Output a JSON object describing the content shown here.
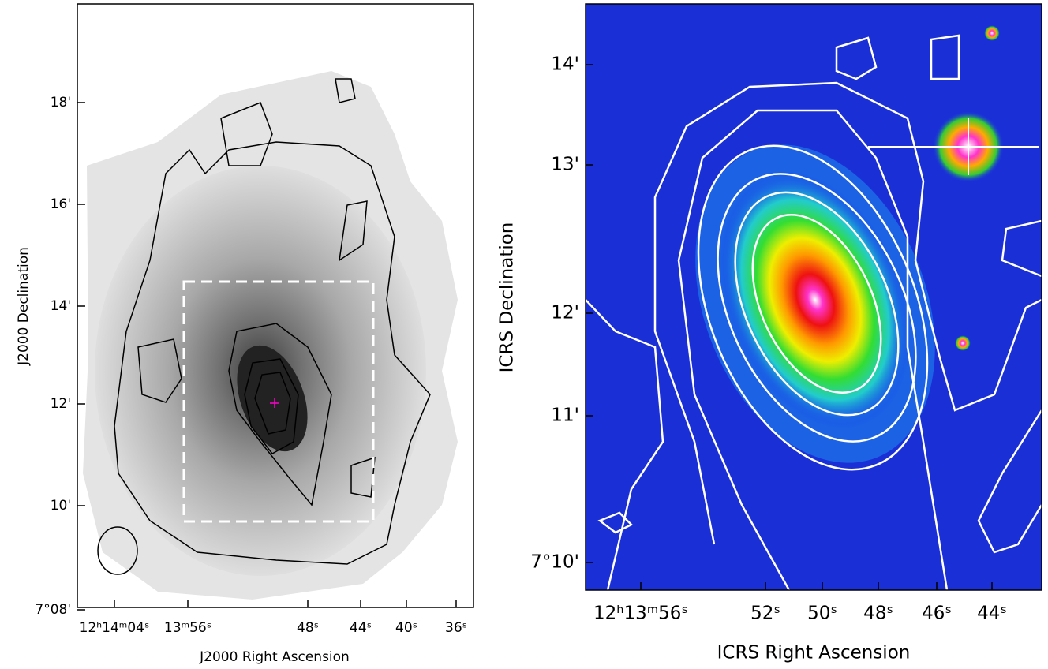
{
  "panels": [
    {
      "x_axis_label": "J2000 Right Ascension",
      "y_axis_label": "J2000 Declination",
      "x_tick_labels": [
        "12ʰ14ᵐ04ˢ",
        "13ᵐ56ˢ",
        "48ˢ",
        "44ˢ",
        "40ˢ",
        "36ˢ"
      ],
      "y_tick_labels": [
        "18'",
        "16'",
        "14'",
        "12'",
        "10'",
        "7°08'"
      ]
    },
    {
      "x_axis_label": "ICRS Right Ascension",
      "y_axis_label": "ICRS Declination",
      "x_tick_labels": [
        "12ʰ13ᵐ56ˢ",
        "52ˢ",
        "50ˢ",
        "48ˢ",
        "46ˢ",
        "44ˢ"
      ],
      "y_tick_labels": [
        "14'",
        "13'",
        "12'",
        "11'",
        "7°10'"
      ]
    }
  ]
}
